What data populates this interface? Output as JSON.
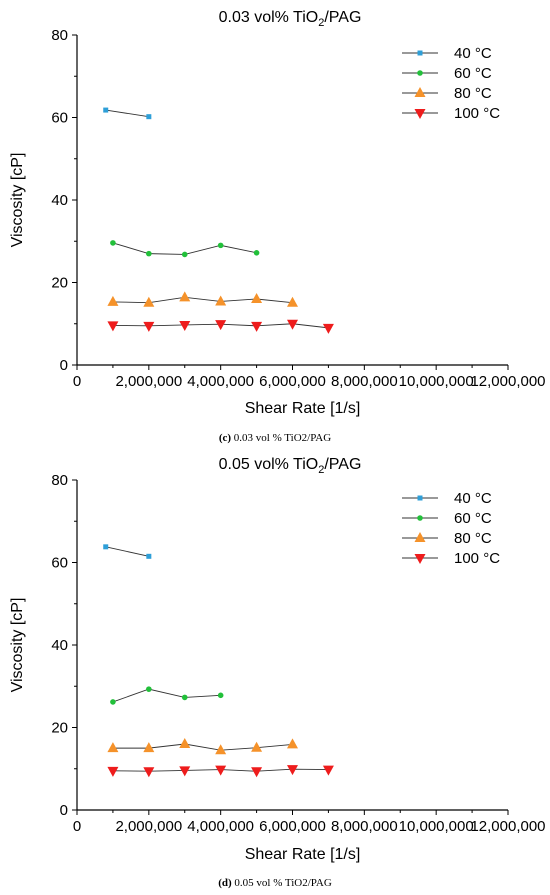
{
  "chart_data": [
    {
      "type": "line",
      "title": "0.03 vol% TiO2/PAG",
      "title_parts": [
        "0.03 vol% TiO",
        "2",
        "/PAG"
      ],
      "caption_label": "(c)",
      "caption_text": " 0.03 vol % TiO2/PAG",
      "xlabel": "Shear Rate [1/s]",
      "ylabel": "Viscosity [cP]",
      "xlim": [
        0,
        12000000
      ],
      "ylim": [
        0,
        80
      ],
      "xticks": [
        0,
        2000000,
        4000000,
        6000000,
        8000000,
        10000000,
        12000000
      ],
      "xtick_labels": [
        "0",
        "2,000,000",
        "4,000,000",
        "6,000,000",
        "8,000,000",
        "10,000,000",
        "12,000,000"
      ],
      "yticks": [
        0,
        20,
        40,
        60,
        80
      ],
      "ytick_labels": [
        "0",
        "20",
        "40",
        "60",
        "80"
      ],
      "legend_position": "top-right",
      "grid": false,
      "series": [
        {
          "name": "40 °C",
          "color": "#2e9fd8",
          "marker": "square",
          "x": [
            800000,
            2000000
          ],
          "y": [
            61.8,
            60.2
          ]
        },
        {
          "name": "60 °C",
          "color": "#22c03a",
          "marker": "circle",
          "x": [
            1000000,
            2000000,
            3000000,
            4000000,
            5000000
          ],
          "y": [
            29.6,
            27.0,
            26.8,
            29.0,
            27.2
          ]
        },
        {
          "name": "80 °C",
          "color": "#f5922a",
          "marker": "triangle-up",
          "x": [
            1000000,
            2000000,
            3000000,
            4000000,
            5000000,
            6000000
          ],
          "y": [
            15.3,
            15.1,
            16.4,
            15.4,
            16.0,
            15.1
          ]
        },
        {
          "name": "100 °C",
          "color": "#ee1c1c",
          "marker": "triangle-down",
          "x": [
            1000000,
            2000000,
            3000000,
            4000000,
            5000000,
            6000000,
            7000000
          ],
          "y": [
            9.6,
            9.5,
            9.7,
            9.9,
            9.5,
            10.0,
            9.0
          ]
        }
      ]
    },
    {
      "type": "line",
      "title": "0.05 vol% TiO2/PAG",
      "title_parts": [
        "0.05 vol% TiO",
        "2",
        "/PAG"
      ],
      "caption_label": "(d)",
      "caption_text": " 0.05 vol % TiO2/PAG",
      "xlabel": "Shear Rate [1/s]",
      "ylabel": "Viscosity [cP]",
      "xlim": [
        0,
        12000000
      ],
      "ylim": [
        0,
        80
      ],
      "xticks": [
        0,
        2000000,
        4000000,
        6000000,
        8000000,
        10000000,
        12000000
      ],
      "xtick_labels": [
        "0",
        "2,000,000",
        "4,000,000",
        "6,000,000",
        "8,000,000",
        "10,000,000",
        "12,000,000"
      ],
      "yticks": [
        0,
        20,
        40,
        60,
        80
      ],
      "ytick_labels": [
        "0",
        "20",
        "40",
        "60",
        "80"
      ],
      "legend_position": "top-right",
      "grid": false,
      "series": [
        {
          "name": "40 °C",
          "color": "#2e9fd8",
          "marker": "square",
          "x": [
            800000,
            2000000
          ],
          "y": [
            63.8,
            61.5
          ]
        },
        {
          "name": "60 °C",
          "color": "#22c03a",
          "marker": "circle",
          "x": [
            1000000,
            2000000,
            3000000,
            4000000
          ],
          "y": [
            26.2,
            29.3,
            27.3,
            27.8
          ]
        },
        {
          "name": "80 °C",
          "color": "#f5922a",
          "marker": "triangle-up",
          "x": [
            1000000,
            2000000,
            3000000,
            4000000,
            5000000,
            6000000
          ],
          "y": [
            15.0,
            15.0,
            16.0,
            14.5,
            15.1,
            15.9
          ]
        },
        {
          "name": "100 °C",
          "color": "#ee1c1c",
          "marker": "triangle-down",
          "x": [
            1000000,
            2000000,
            3000000,
            4000000,
            5000000,
            6000000,
            7000000
          ],
          "y": [
            9.5,
            9.4,
            9.6,
            9.8,
            9.4,
            9.9,
            9.8
          ]
        }
      ]
    }
  ]
}
